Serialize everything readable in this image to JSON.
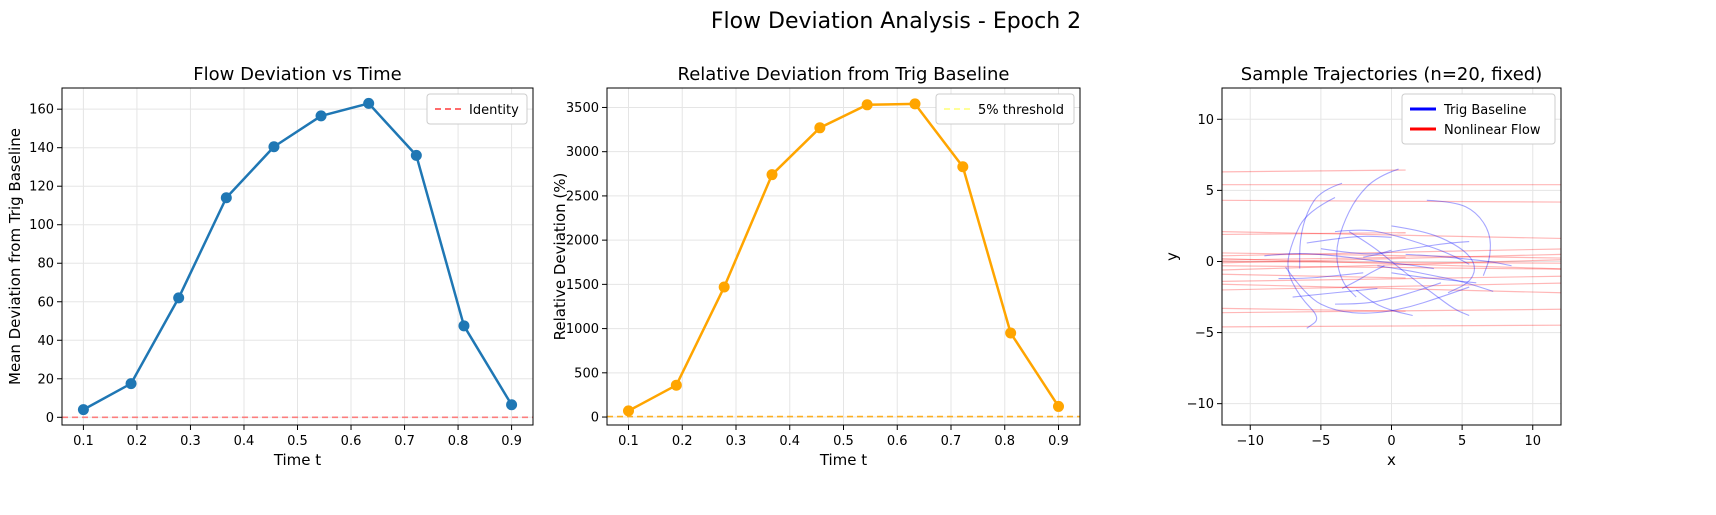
{
  "figure": {
    "suptitle": "Flow Deviation Analysis - Epoch 2"
  },
  "colors": {
    "deviation": "#1f77b4",
    "relative": "#ffa500",
    "identity_line": "#ff6b6b",
    "threshold_line": "#ffa500",
    "threshold_legend": "#ffff99",
    "trig": "#0000ff",
    "nonlinear": "#ff0000",
    "grid": "#e5e5e5"
  },
  "chart_data": [
    {
      "type": "line",
      "title": "Flow Deviation vs Time",
      "xlabel": "Time t",
      "ylabel": "Mean Deviation from Trig Baseline",
      "xlim": [
        0.06,
        0.94
      ],
      "ylim": [
        -4,
        171
      ],
      "xticks": [
        0.1,
        0.2,
        0.3,
        0.4,
        0.5,
        0.6,
        0.7,
        0.8,
        0.9
      ],
      "yticks": [
        0,
        20,
        40,
        60,
        80,
        100,
        120,
        140,
        160
      ],
      "grid": true,
      "legend_position": "top-right",
      "series": [
        {
          "x": [
            0.1,
            0.189,
            0.278,
            0.367,
            0.456,
            0.544,
            0.633,
            0.722,
            0.811,
            0.9
          ],
          "values": [
            4,
            17.5,
            62,
            114,
            140.5,
            156.5,
            163,
            136,
            47.5,
            6.5
          ]
        }
      ],
      "reference_lines": [
        {
          "name": "Identity",
          "y": 0
        }
      ]
    },
    {
      "type": "line",
      "title": "Relative Deviation from Trig Baseline",
      "xlabel": "Time t",
      "ylabel": "Relative Deviation (%)",
      "xlim": [
        0.06,
        0.94
      ],
      "ylim": [
        -90,
        3720
      ],
      "xticks": [
        0.1,
        0.2,
        0.3,
        0.4,
        0.5,
        0.6,
        0.7,
        0.8,
        0.9
      ],
      "yticks": [
        0,
        500,
        1000,
        1500,
        2000,
        2500,
        3000,
        3500
      ],
      "grid": true,
      "legend_position": "top-right",
      "series": [
        {
          "x": [
            0.1,
            0.189,
            0.278,
            0.367,
            0.456,
            0.544,
            0.633,
            0.722,
            0.811,
            0.9
          ],
          "values": [
            70,
            360,
            1470,
            2740,
            3270,
            3530,
            3540,
            2830,
            950,
            120
          ]
        }
      ],
      "reference_lines": [
        {
          "name": "5% threshold",
          "y": 5
        }
      ]
    },
    {
      "type": "line",
      "title": "Sample Trajectories (n=20, fixed)",
      "xlabel": "x",
      "ylabel": "y",
      "xlim": [
        -12,
        12
      ],
      "ylim": [
        -11.5,
        12.2
      ],
      "xticks": [
        -10,
        -5,
        0,
        5,
        10
      ],
      "yticks": [
        -10,
        -5,
        0,
        5,
        10
      ],
      "grid": true,
      "legend_position": "top-right",
      "legend": [
        "Trig Baseline",
        "Nonlinear Flow"
      ],
      "trig_trajectories": [
        [
          [
            -7.5,
            -0.4
          ],
          [
            -6,
            -2.5
          ],
          [
            -4,
            -3.5
          ],
          [
            -1.5,
            -3.7
          ],
          [
            1,
            -3.3
          ],
          [
            3.5,
            -2.5
          ],
          [
            5.5,
            -1.8
          ]
        ],
        [
          [
            -4,
            2.1
          ],
          [
            -2,
            2.3
          ],
          [
            0,
            1.9
          ],
          [
            2,
            1.3
          ],
          [
            4,
            0.6
          ],
          [
            5.5,
            -0.2
          ]
        ],
        [
          [
            -3,
            2.1
          ],
          [
            -1.5,
            1.2
          ],
          [
            0,
            0
          ],
          [
            1.5,
            -1.2
          ],
          [
            3,
            -2.3
          ],
          [
            4.5,
            -3.4
          ],
          [
            5.5,
            -3.8
          ]
        ],
        [
          [
            -4,
            4.5
          ],
          [
            -6,
            3.5
          ],
          [
            -7,
            1.5
          ],
          [
            -7.5,
            -0.5
          ],
          [
            -6.5,
            -2.5
          ],
          [
            -5,
            -4
          ],
          [
            -6,
            -4.7
          ]
        ],
        [
          [
            0.5,
            6.5
          ],
          [
            -1,
            6
          ],
          [
            -2.5,
            4.5
          ],
          [
            -3.5,
            2.5
          ],
          [
            -4,
            0.5
          ],
          [
            -3.5,
            -1.5
          ],
          [
            -2.5,
            -2.5
          ]
        ],
        [
          [
            -3.5,
            5.5
          ],
          [
            -5,
            5
          ],
          [
            -6,
            3.5
          ],
          [
            -6.5,
            1.5
          ],
          [
            -6.5,
            -0.5
          ]
        ],
        [
          [
            0,
            2.5
          ],
          [
            2,
            2.2
          ],
          [
            4,
            1.5
          ],
          [
            5.5,
            0.5
          ],
          [
            6,
            -0.5
          ],
          [
            5.5,
            -1.5
          ],
          [
            4,
            -2.2
          ]
        ],
        [
          [
            2.5,
            4.3
          ],
          [
            4.5,
            4.2
          ],
          [
            6,
            3.5
          ],
          [
            7,
            2
          ],
          [
            7,
            0.3
          ],
          [
            6.5,
            -1
          ]
        ],
        [
          [
            -2.5,
            -2
          ],
          [
            -1.5,
            -2.8
          ],
          [
            -0.2,
            -3.4
          ],
          [
            1.5,
            -3.8
          ]
        ],
        [
          [
            -1,
            -0.3
          ],
          [
            1,
            -0.6
          ],
          [
            3,
            -1
          ],
          [
            5,
            -1.4
          ],
          [
            7.2,
            -2.1
          ]
        ],
        [
          [
            -9,
            0.4
          ],
          [
            -7,
            0.6
          ],
          [
            -5,
            0.5
          ],
          [
            -3,
            0.3
          ],
          [
            -1,
            0
          ],
          [
            1,
            -0.2
          ],
          [
            3,
            -0.5
          ]
        ],
        [
          [
            -2,
            0.3
          ],
          [
            0,
            0.7
          ],
          [
            2,
            1
          ],
          [
            4,
            1.3
          ],
          [
            5.5,
            1.4
          ]
        ],
        [
          [
            -4,
            -3
          ],
          [
            -2,
            -3
          ],
          [
            0,
            -2.6
          ],
          [
            2,
            -2
          ],
          [
            3.5,
            -1.5
          ]
        ],
        [
          [
            -6,
            1.3
          ],
          [
            -4,
            1.6
          ],
          [
            -2,
            1.8
          ],
          [
            0,
            1.7
          ]
        ],
        [
          [
            -8,
            -1.2
          ],
          [
            -6,
            -1.2
          ],
          [
            -4,
            -1
          ],
          [
            -2,
            -0.8
          ]
        ],
        [
          [
            -5,
            0.9
          ],
          [
            -3,
            0.6
          ],
          [
            -1,
            0.5
          ],
          [
            0,
            0.8
          ]
        ],
        [
          [
            -3.5,
            -1.9
          ],
          [
            -2.5,
            -1.4
          ],
          [
            -1.5,
            -0.8
          ],
          [
            -0.5,
            -0.3
          ]
        ],
        [
          [
            1,
            0.5
          ],
          [
            3,
            0.4
          ],
          [
            5,
            0.2
          ],
          [
            7,
            0
          ],
          [
            8.5,
            -0.3
          ]
        ],
        [
          [
            -7,
            -2.5
          ],
          [
            -5,
            -2.3
          ],
          [
            -3,
            -2.1
          ],
          [
            -1,
            -1.9
          ]
        ],
        [
          [
            0,
            -0.8
          ],
          [
            2,
            -1.1
          ],
          [
            4,
            -1.3
          ],
          [
            6,
            -1.5
          ]
        ]
      ],
      "nonlinear_y": [
        6.3,
        5.4,
        4.3,
        2.1,
        1.9,
        0.6,
        0.4,
        0.2,
        0.1,
        -0.1,
        -0.3,
        -0.6,
        -0.9,
        -1.4,
        -1.6,
        -2.0,
        -3.3,
        -3.6,
        -4.6,
        0.0
      ],
      "nonlinear_slope": [
        0.01,
        0.0,
        -0.005,
        -0.02,
        0.01,
        -0.015,
        0.02,
        -0.03,
        0.015,
        0.025,
        -0.01,
        0.03,
        -0.02,
        0.015,
        -0.025,
        0.02,
        -0.015,
        0.01,
        0.005,
        -0.005
      ]
    }
  ]
}
